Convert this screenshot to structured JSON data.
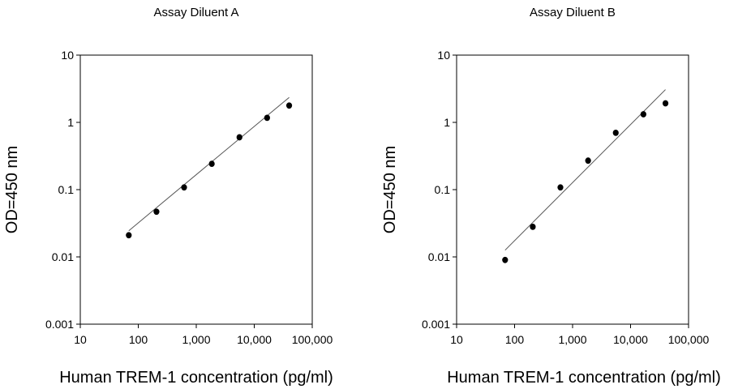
{
  "chart_data": [
    {
      "type": "scatter",
      "title": "Assay Diluent A",
      "xlabel": "Human TREM-1 concentration (pg/ml)",
      "ylabel": "OD=450 nm",
      "xscale": "log",
      "yscale": "log",
      "xlim": [
        10,
        100000
      ],
      "ylim": [
        0.001,
        10
      ],
      "x_ticks": [
        "10",
        "100",
        "1,000",
        "10,000",
        "100,000"
      ],
      "y_ticks": [
        "0.001",
        "0.01",
        "0.1",
        "1",
        "10"
      ],
      "grid": false,
      "points": [
        {
          "x": 68.6,
          "y": 0.021
        },
        {
          "x": 206,
          "y": 0.047
        },
        {
          "x": 617,
          "y": 0.108
        },
        {
          "x": 1852,
          "y": 0.242
        },
        {
          "x": 5556,
          "y": 0.6
        },
        {
          "x": 16667,
          "y": 1.17
        },
        {
          "x": 40000,
          "y": 1.78
        }
      ],
      "fit_line": [
        {
          "x": 68.6,
          "y": 0.0245
        },
        {
          "x": 40000,
          "y": 2.35
        }
      ]
    },
    {
      "type": "scatter",
      "title": "Assay Diluent B",
      "xlabel": "Human TREM-1 concentration (pg/ml)",
      "ylabel": "OD=450 nm",
      "xscale": "log",
      "yscale": "log",
      "xlim": [
        10,
        100000
      ],
      "ylim": [
        0.001,
        10
      ],
      "x_ticks": [
        "10",
        "100",
        "1,000",
        "10,000",
        "100,000"
      ],
      "y_ticks": [
        "0.001",
        "0.01",
        "0.1",
        "1",
        "10"
      ],
      "grid": false,
      "points": [
        {
          "x": 68.6,
          "y": 0.009
        },
        {
          "x": 206,
          "y": 0.028
        },
        {
          "x": 617,
          "y": 0.108
        },
        {
          "x": 1852,
          "y": 0.27
        },
        {
          "x": 5556,
          "y": 0.7
        },
        {
          "x": 16667,
          "y": 1.32
        },
        {
          "x": 40000,
          "y": 1.92
        }
      ],
      "fit_line": [
        {
          "x": 68.6,
          "y": 0.0126
        },
        {
          "x": 40000,
          "y": 3.07
        }
      ]
    }
  ]
}
